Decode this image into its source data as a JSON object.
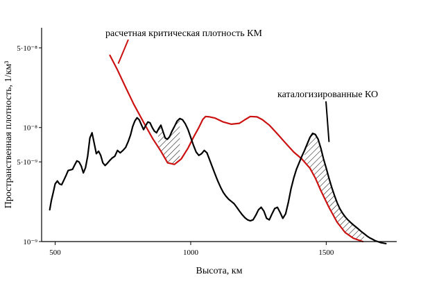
{
  "chart_data": {
    "type": "line",
    "x_scale": "linear",
    "y_scale": "log",
    "xlim": [
      450,
      1760
    ],
    "ylim": [
      1e-09,
      7.5e-08
    ],
    "xlabel": "Высота,  км",
    "ylabel": "Пространственная плотность,  1/км³",
    "x_ticks": [
      {
        "value": 500,
        "label": "500"
      },
      {
        "value": 1000,
        "label": "1000"
      },
      {
        "value": 1500,
        "label": "1500"
      }
    ],
    "y_ticks": [
      {
        "value": 1e-09,
        "label": "10⁻⁹"
      },
      {
        "value": 5e-09,
        "label": "5·10⁻⁹"
      },
      {
        "value": 1e-08,
        "label": "10⁻⁸"
      },
      {
        "value": 5e-08,
        "label": "5·10⁻⁸"
      }
    ],
    "grid": false,
    "series": [
      {
        "name": "расчетная критическая плотность КМ",
        "color": "#cc1111",
        "x": [
          702,
          730,
          760,
          790,
          830,
          860,
          890,
          915,
          940,
          965,
          990,
          1010,
          1030,
          1045,
          1055,
          1070,
          1090,
          1120,
          1150,
          1180,
          1200,
          1220,
          1245,
          1265,
          1290,
          1320,
          1350,
          1380,
          1410,
          1440,
          1460,
          1480,
          1510,
          1540,
          1570,
          1600,
          1635
        ],
        "y": [
          4.3e-08,
          3.2e-08,
          2.25e-08,
          1.6e-08,
          1.07e-08,
          8e-09,
          6.2e-09,
          4.9e-09,
          4.75e-09,
          5.3e-09,
          6.6e-09,
          8.2e-09,
          1e-08,
          1.18e-08,
          1.25e-08,
          1.24e-08,
          1.21e-08,
          1.12e-08,
          1.07e-08,
          1.09e-08,
          1.17e-08,
          1.25e-08,
          1.24e-08,
          1.17e-08,
          1.05e-08,
          8.8e-09,
          7.3e-09,
          6.1e-09,
          5.3e-09,
          4.4e-09,
          3.6e-09,
          2.8e-09,
          2e-09,
          1.48e-09,
          1.2e-09,
          1.07e-09,
          1e-09
        ]
      },
      {
        "name": "каталогизированные КО",
        "color": "#000000",
        "x": [
          480,
          486,
          493,
          500,
          508,
          516,
          524,
          532,
          540,
          548,
          556,
          564,
          572,
          580,
          588,
          596,
          604,
          612,
          620,
          628,
          636,
          644,
          652,
          660,
          668,
          676,
          684,
          692,
          700,
          710,
          720,
          730,
          740,
          750,
          760,
          770,
          778,
          786,
          794,
          802,
          810,
          818,
          826,
          834,
          842,
          850,
          858,
          866,
          874,
          882,
          890,
          898,
          906,
          914,
          922,
          930,
          940,
          950,
          960,
          970,
          980,
          990,
          1000,
          1010,
          1020,
          1030,
          1040,
          1050,
          1060,
          1070,
          1080,
          1090,
          1100,
          1110,
          1120,
          1130,
          1140,
          1150,
          1160,
          1170,
          1180,
          1190,
          1200,
          1210,
          1220,
          1230,
          1240,
          1250,
          1260,
          1270,
          1280,
          1290,
          1300,
          1310,
          1320,
          1330,
          1340,
          1350,
          1360,
          1370,
          1380,
          1390,
          1400,
          1410,
          1420,
          1430,
          1440,
          1450,
          1460,
          1470,
          1480,
          1490,
          1500,
          1510,
          1520,
          1530,
          1540,
          1550,
          1560,
          1570,
          1580,
          1590,
          1600,
          1610,
          1620,
          1630,
          1640,
          1650,
          1660,
          1670,
          1680,
          1690,
          1700,
          1710,
          1720
        ],
        "y": [
          1.9e-09,
          2.3e-09,
          2.7e-09,
          3.2e-09,
          3.4e-09,
          3.2e-09,
          3.15e-09,
          3.45e-09,
          3.8e-09,
          4.2e-09,
          4.25e-09,
          4.3e-09,
          4.7e-09,
          5.1e-09,
          5e-09,
          4.6e-09,
          4e-09,
          4.45e-09,
          5.6e-09,
          8.1e-09,
          9e-09,
          7.3e-09,
          5.9e-09,
          6.2e-09,
          5.7e-09,
          4.9e-09,
          4.65e-09,
          4.85e-09,
          5.1e-09,
          5.4e-09,
          5.6e-09,
          6.3e-09,
          6e-09,
          6.3e-09,
          6.7e-09,
          7.6e-09,
          8.6e-09,
          1.02e-08,
          1.14e-08,
          1.22e-08,
          1.17e-08,
          1.06e-08,
          9.6e-09,
          1.04e-08,
          1.12e-08,
          1.1e-08,
          1e-08,
          9.3e-09,
          9e-09,
          9.8e-09,
          1.05e-08,
          9.2e-09,
          8.1e-09,
          7.9e-09,
          8.3e-09,
          9.2e-09,
          1.02e-08,
          1.14e-08,
          1.2e-08,
          1.17e-08,
          1.08e-08,
          9.6e-09,
          8.2e-09,
          7e-09,
          6.1e-09,
          5.7e-09,
          5.9e-09,
          6.3e-09,
          6e-09,
          5.2e-09,
          4.5e-09,
          3.9e-09,
          3.4e-09,
          3e-09,
          2.7e-09,
          2.5e-09,
          2.35e-09,
          2.25e-09,
          2.15e-09,
          2e-09,
          1.85e-09,
          1.72e-09,
          1.62e-09,
          1.55e-09,
          1.52e-09,
          1.55e-09,
          1.7e-09,
          1.9e-09,
          2e-09,
          1.85e-09,
          1.6e-09,
          1.55e-09,
          1.75e-09,
          1.95e-09,
          2e-09,
          1.8e-09,
          1.6e-09,
          1.75e-09,
          2.2e-09,
          2.9e-09,
          3.6e-09,
          4.3e-09,
          4.9e-09,
          5.6e-09,
          6.3e-09,
          7.2e-09,
          8.2e-09,
          8.9e-09,
          8.7e-09,
          7.9e-09,
          6.6e-09,
          5.3e-09,
          4.4e-09,
          3.6e-09,
          3e-09,
          2.55e-09,
          2.2e-09,
          1.95e-09,
          1.78e-09,
          1.65e-09,
          1.55e-09,
          1.47e-09,
          1.4e-09,
          1.34e-09,
          1.28e-09,
          1.22e-09,
          1.17e-09,
          1.12e-09,
          1.08e-09,
          1.05e-09,
          1.02e-09,
          1e-09,
          9.8e-10,
          9.7e-10,
          9.6e-10
        ]
      }
    ],
    "hatched_regions": [
      {
        "x_from": 880,
        "x_to": 960
      },
      {
        "x_from": 1420,
        "x_to": 1640
      }
    ],
    "annotations": [
      {
        "text": "расчетная критическая плотность КМ",
        "target_series": 0,
        "target_x": 702,
        "target_y": 4.3e-08
      },
      {
        "text": "каталогизированные КО",
        "target_series": 1,
        "target_x": 1495,
        "target_y": 7.9e-09
      }
    ]
  }
}
